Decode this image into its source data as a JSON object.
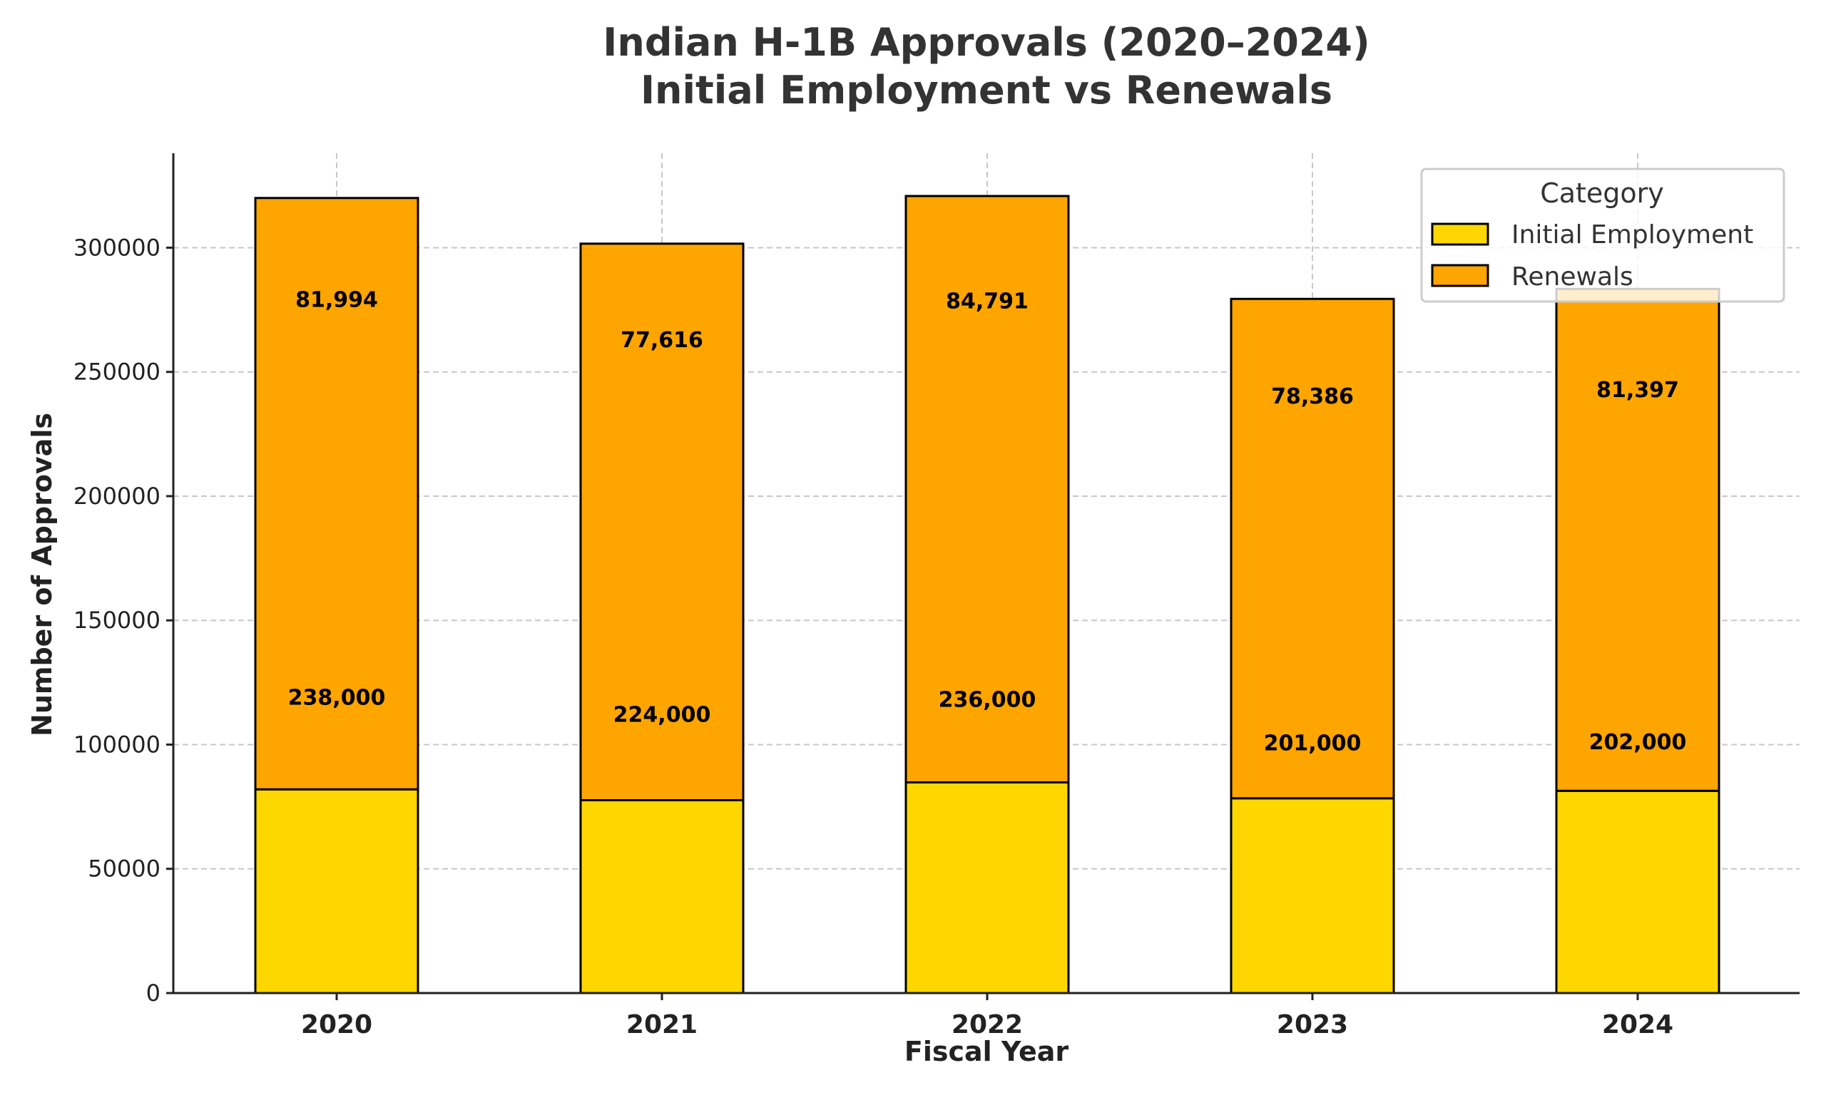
{
  "chart_data": {
    "type": "bar",
    "stacked": true,
    "title": "Indian H-1B Approvals (2020–2024)",
    "subtitle": "Initial Employment vs Renewals",
    "xlabel": "Fiscal Year",
    "ylabel": "Number of Approvals",
    "categories": [
      "2020",
      "2021",
      "2022",
      "2023",
      "2024"
    ],
    "series": [
      {
        "name": "Initial Employment",
        "color": "#FFD700",
        "values": [
          81994,
          77616,
          84791,
          78386,
          81397
        ]
      },
      {
        "name": "Renewals",
        "color": "#FFA500",
        "values": [
          238000,
          224000,
          236000,
          201000,
          202000
        ]
      }
    ],
    "data_labels": {
      "Initial Employment": [
        "81,994",
        "77,616",
        "84,791",
        "78,386",
        "81,397"
      ],
      "Renewals": [
        "238,000",
        "224,000",
        "236,000",
        "201,000",
        "202,000"
      ]
    },
    "ylim": [
      0,
      338000
    ],
    "yticks": [
      0,
      50000,
      100000,
      150000,
      200000,
      250000,
      300000
    ],
    "ytick_labels": [
      "0",
      "50000",
      "100000",
      "150000",
      "200000",
      "250000",
      "300000"
    ],
    "grid": true,
    "legend": {
      "title": "Category",
      "position": "top-right"
    }
  }
}
